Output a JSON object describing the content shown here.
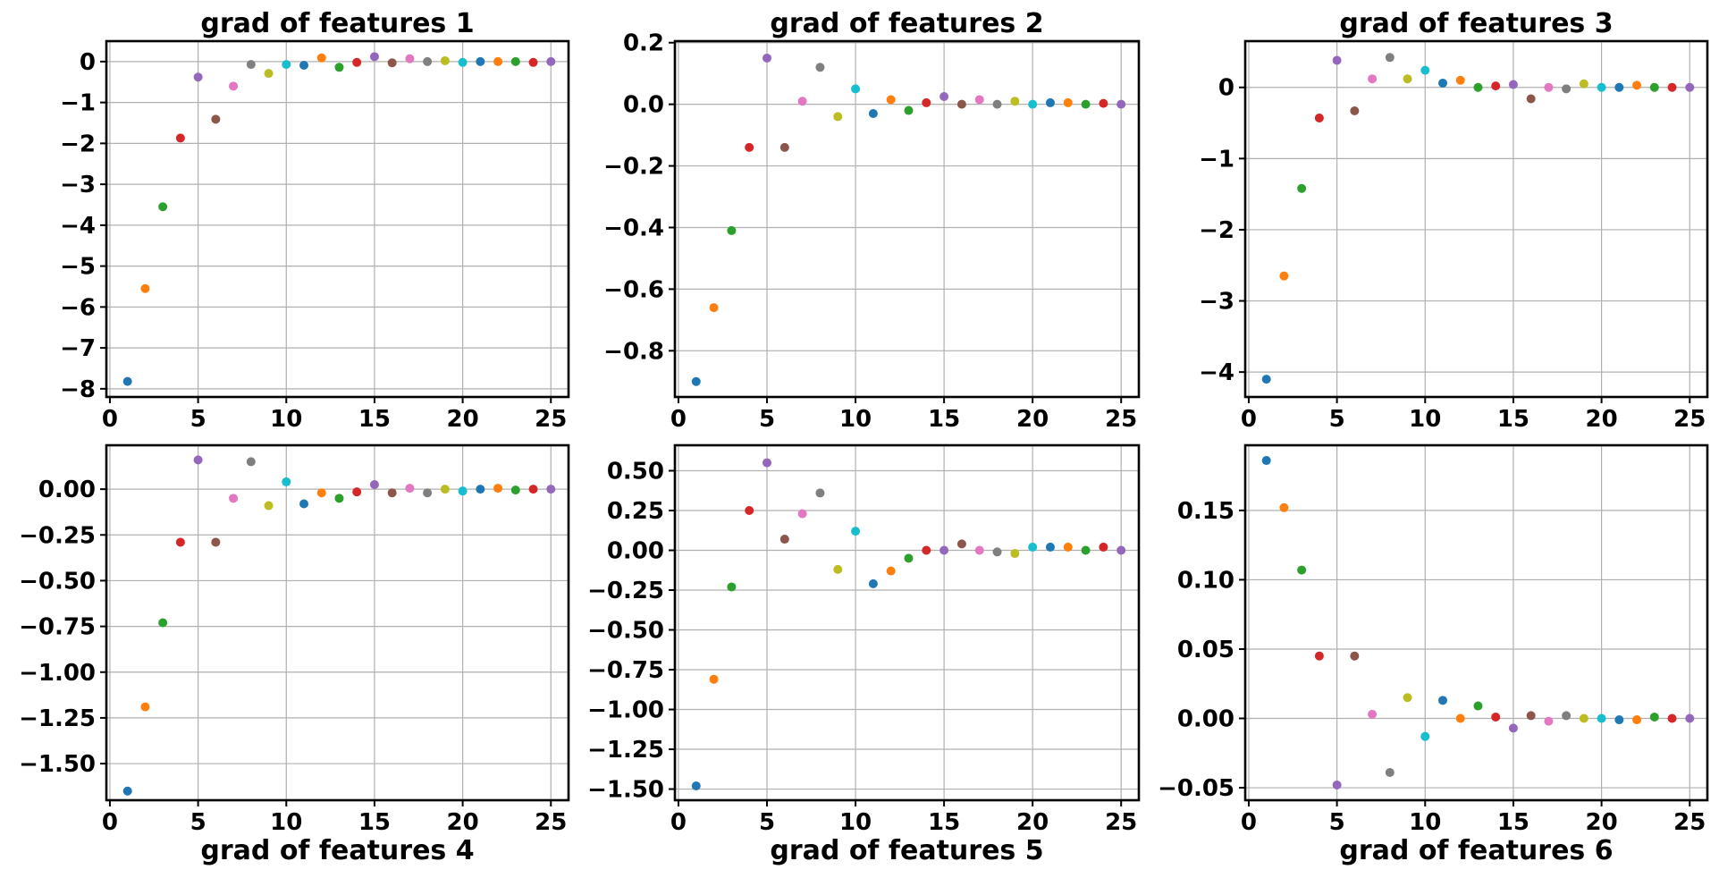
{
  "colors": [
    "#1f77b4",
    "#ff7f0e",
    "#2ca02c",
    "#d62728",
    "#9467bd",
    "#8c564b",
    "#e377c2",
    "#7f7f7f",
    "#bcbd22",
    "#17becf"
  ],
  "chart_data": [
    {
      "type": "scatter",
      "title": "grad of features 1",
      "title_position": "top",
      "x": [
        1,
        2,
        3,
        4,
        5,
        6,
        7,
        8,
        9,
        10,
        11,
        12,
        13,
        14,
        15,
        16,
        17,
        18,
        19,
        20,
        21,
        22,
        23,
        24,
        25
      ],
      "y": [
        -7.82,
        -5.55,
        -3.55,
        -1.87,
        -0.38,
        -1.41,
        -0.6,
        -0.07,
        -0.29,
        -0.07,
        -0.09,
        0.09,
        -0.14,
        -0.02,
        0.12,
        -0.03,
        0.07,
        0.0,
        0.02,
        -0.02,
        0.0,
        0.0,
        0.0,
        -0.02,
        0.0
      ],
      "xlim": [
        -0.2,
        26
      ],
      "ylim": [
        -8.2,
        0.5
      ],
      "xticks": [
        0,
        5,
        10,
        15,
        20,
        25
      ],
      "xtick_labels": [
        "0",
        "5",
        "10",
        "15",
        "20",
        "25"
      ],
      "yticks": [
        0,
        -1,
        -2,
        -3,
        -4,
        -5,
        -6,
        -7,
        -8
      ],
      "ytick_labels": [
        "0",
        "−1",
        "−2",
        "−3",
        "−4",
        "−5",
        "−6",
        "−7",
        "−8"
      ],
      "grid": true
    },
    {
      "type": "scatter",
      "title": "grad of features 2",
      "title_position": "top",
      "x": [
        1,
        2,
        3,
        4,
        5,
        6,
        7,
        8,
        9,
        10,
        11,
        12,
        13,
        14,
        15,
        16,
        17,
        18,
        19,
        20,
        21,
        22,
        23,
        24,
        25
      ],
      "y": [
        -0.9,
        -0.66,
        -0.41,
        -0.14,
        0.15,
        -0.14,
        0.01,
        0.12,
        -0.04,
        0.05,
        -0.03,
        0.015,
        -0.02,
        0.005,
        0.025,
        0.0,
        0.015,
        0.0,
        0.01,
        0.0,
        0.005,
        0.005,
        0.0,
        0.003,
        0.0
      ],
      "xlim": [
        -0.2,
        26
      ],
      "ylim": [
        -0.95,
        0.205
      ],
      "xticks": [
        0,
        5,
        10,
        15,
        20,
        25
      ],
      "xtick_labels": [
        "0",
        "5",
        "10",
        "15",
        "20",
        "25"
      ],
      "yticks": [
        0.2,
        0.0,
        -0.2,
        -0.4,
        -0.6,
        -0.8
      ],
      "ytick_labels": [
        "0.2",
        "0.0",
        "−0.2",
        "−0.4",
        "−0.6",
        "−0.8"
      ],
      "grid": true
    },
    {
      "type": "scatter",
      "title": "grad of features 3",
      "title_position": "top",
      "x": [
        1,
        2,
        3,
        4,
        5,
        6,
        7,
        8,
        9,
        10,
        11,
        12,
        13,
        14,
        15,
        16,
        17,
        18,
        19,
        20,
        21,
        22,
        23,
        24,
        25
      ],
      "y": [
        -4.1,
        -2.65,
        -1.42,
        -0.43,
        0.38,
        -0.33,
        0.12,
        0.42,
        0.12,
        0.24,
        0.06,
        0.1,
        0.0,
        0.02,
        0.04,
        -0.16,
        0.0,
        -0.02,
        0.05,
        0.0,
        0.0,
        0.03,
        0.0,
        0.0,
        0.0
      ],
      "xlim": [
        -0.2,
        26
      ],
      "ylim": [
        -4.35,
        0.65
      ],
      "xticks": [
        0,
        5,
        10,
        15,
        20,
        25
      ],
      "xtick_labels": [
        "0",
        "5",
        "10",
        "15",
        "20",
        "25"
      ],
      "yticks": [
        0,
        -1,
        -2,
        -3,
        -4
      ],
      "ytick_labels": [
        "0",
        "−1",
        "−2",
        "−3",
        "−4"
      ],
      "grid": true
    },
    {
      "type": "scatter",
      "title": "grad of features 4",
      "title_position": "bottom",
      "x": [
        1,
        2,
        3,
        4,
        5,
        6,
        7,
        8,
        9,
        10,
        11,
        12,
        13,
        14,
        15,
        16,
        17,
        18,
        19,
        20,
        21,
        22,
        23,
        24,
        25
      ],
      "y": [
        -1.65,
        -1.19,
        -0.73,
        -0.29,
        0.16,
        -0.29,
        -0.05,
        0.15,
        -0.09,
        0.04,
        -0.08,
        -0.02,
        -0.05,
        -0.015,
        0.025,
        -0.02,
        0.005,
        -0.02,
        0.0,
        -0.01,
        0.0,
        0.005,
        -0.005,
        0.0,
        0.0
      ],
      "xlim": [
        -0.2,
        26
      ],
      "ylim": [
        -1.7,
        0.24
      ],
      "xticks": [
        0,
        5,
        10,
        15,
        20,
        25
      ],
      "xtick_labels": [
        "0",
        "5",
        "10",
        "15",
        "20",
        "25"
      ],
      "yticks": [
        0.0,
        -0.25,
        -0.5,
        -0.75,
        -1.0,
        -1.25,
        -1.5
      ],
      "ytick_labels": [
        "0.00",
        "−0.25",
        "−0.50",
        "−0.75",
        "−1.00",
        "−1.25",
        "−1.50"
      ],
      "grid": true
    },
    {
      "type": "scatter",
      "title": "grad of features 5",
      "title_position": "bottom",
      "x": [
        1,
        2,
        3,
        4,
        5,
        6,
        7,
        8,
        9,
        10,
        11,
        12,
        13,
        14,
        15,
        16,
        17,
        18,
        19,
        20,
        21,
        22,
        23,
        24,
        25
      ],
      "y": [
        -1.48,
        -0.81,
        -0.23,
        0.25,
        0.55,
        0.07,
        0.23,
        0.36,
        -0.12,
        0.12,
        -0.21,
        -0.13,
        -0.05,
        0.0,
        0.0,
        0.04,
        0.0,
        -0.01,
        -0.02,
        0.02,
        0.02,
        0.02,
        0.0,
        0.02,
        0.0
      ],
      "xlim": [
        -0.2,
        26
      ],
      "ylim": [
        -1.57,
        0.66
      ],
      "xticks": [
        0,
        5,
        10,
        15,
        20,
        25
      ],
      "xtick_labels": [
        "0",
        "5",
        "10",
        "15",
        "20",
        "25"
      ],
      "yticks": [
        0.5,
        0.25,
        0.0,
        -0.25,
        -0.5,
        -0.75,
        -1.0,
        -1.25,
        -1.5
      ],
      "ytick_labels": [
        "0.50",
        "0.25",
        "0.00",
        "−0.25",
        "−0.50",
        "−0.75",
        "−1.00",
        "−1.25",
        "−1.50"
      ],
      "grid": true
    },
    {
      "type": "scatter",
      "title": "grad of features 6",
      "title_position": "bottom",
      "x": [
        1,
        2,
        3,
        4,
        5,
        6,
        7,
        8,
        9,
        10,
        11,
        12,
        13,
        14,
        15,
        16,
        17,
        18,
        19,
        20,
        21,
        22,
        23,
        24,
        25
      ],
      "y": [
        0.186,
        0.152,
        0.107,
        0.045,
        -0.048,
        0.045,
        0.003,
        -0.039,
        0.015,
        -0.013,
        0.013,
        0.0,
        0.009,
        0.001,
        -0.007,
        0.002,
        -0.002,
        0.002,
        0.0,
        0.0,
        -0.001,
        -0.001,
        0.001,
        0.0,
        0.0
      ],
      "xlim": [
        -0.2,
        26
      ],
      "ylim": [
        -0.059,
        0.197
      ],
      "xticks": [
        0,
        5,
        10,
        15,
        20,
        25
      ],
      "xtick_labels": [
        "0",
        "5",
        "10",
        "15",
        "20",
        "25"
      ],
      "yticks": [
        0.15,
        0.1,
        0.05,
        0.0,
        -0.05
      ],
      "ytick_labels": [
        "0.15",
        "0.10",
        "0.05",
        "0.00",
        "−0.05"
      ],
      "grid": true
    }
  ]
}
